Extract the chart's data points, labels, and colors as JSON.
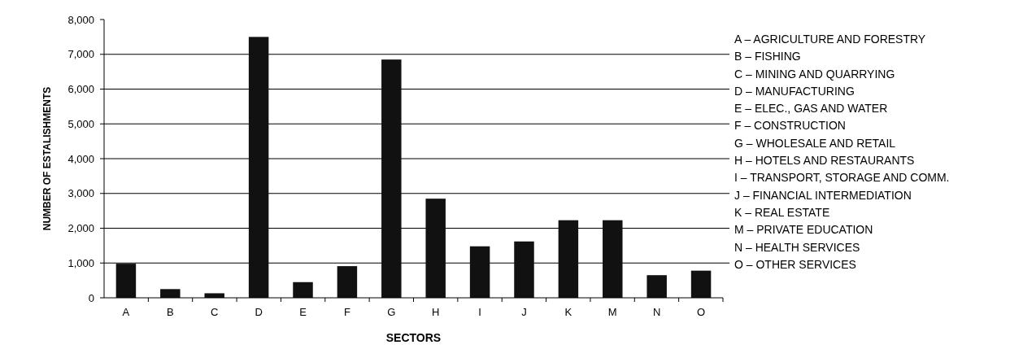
{
  "chart_data": {
    "type": "bar",
    "xlabel": "SECTORS",
    "ylabel": "NUMBER OF ESTALISHMENTS",
    "categories": [
      "A",
      "B",
      "C",
      "D",
      "E",
      "F",
      "G",
      "H",
      "I",
      "J",
      "K",
      "M",
      "N",
      "O"
    ],
    "values": [
      980,
      250,
      130,
      7500,
      450,
      910,
      6850,
      2850,
      1480,
      1620,
      2230,
      2230,
      650,
      780
    ],
    "color": "#111111",
    "ylim": [
      0,
      8000
    ],
    "yticks": [
      {
        "value": 0,
        "label": "0"
      },
      {
        "value": 1000,
        "label": "1,000"
      },
      {
        "value": 2000,
        "label": "2,000"
      },
      {
        "value": 3000,
        "label": "3,000"
      },
      {
        "value": 4000,
        "label": "4,000"
      },
      {
        "value": 5000,
        "label": "5,000"
      },
      {
        "value": 6000,
        "label": "6,000"
      },
      {
        "value": 7000,
        "label": "7,000"
      },
      {
        "value": 8000,
        "label": "8,000"
      }
    ],
    "grid": "y",
    "annotations": [
      "A – AGRICULTURE AND FORESTRY",
      "B – FISHING",
      "C – MINING AND QUARRYING",
      "D – MANUFACTURING",
      "E – ELEC., GAS AND WATER",
      "F – CONSTRUCTION",
      "G – WHOLESALE AND RETAIL",
      "H – HOTELS AND RESTAURANTS",
      "I – TRANSPORT, STORAGE AND COMM.",
      "J – FINANCIAL INTERMEDIATION",
      "K – REAL ESTATE",
      "M – PRIVATE EDUCATION",
      "N – HEALTH SERVICES",
      "O – OTHER SERVICES"
    ]
  }
}
